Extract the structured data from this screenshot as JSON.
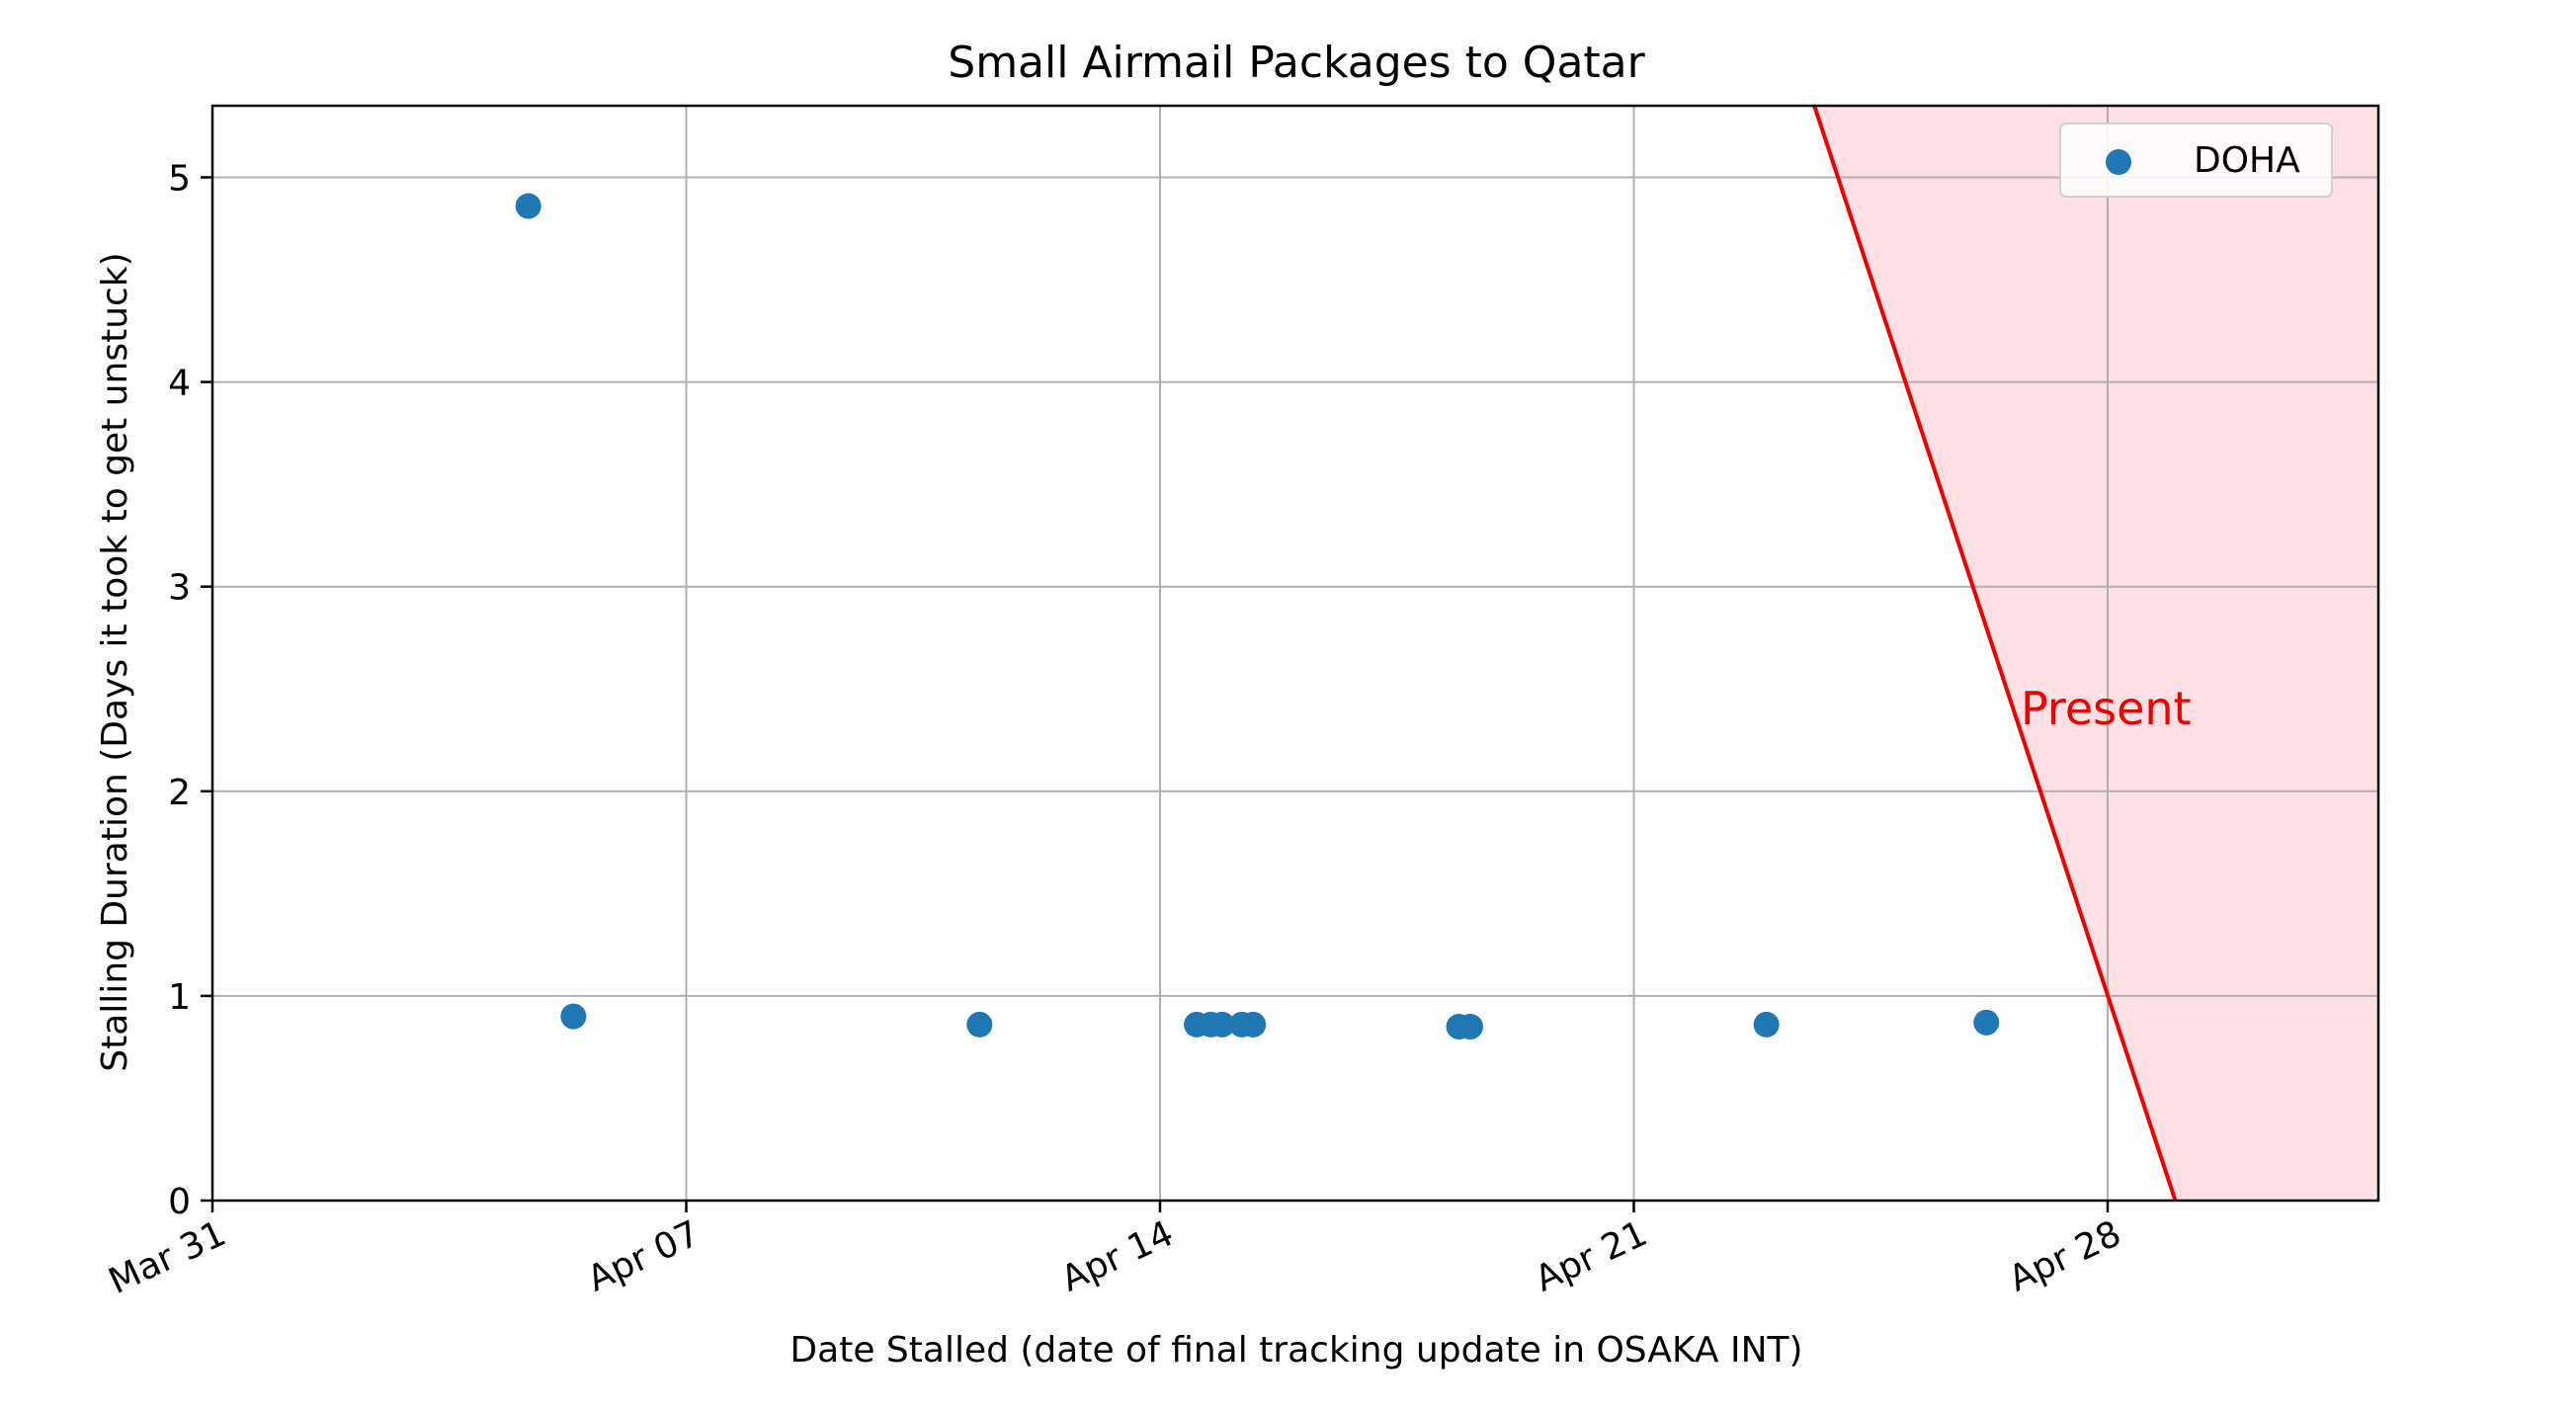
{
  "chart_data": {
    "type": "scatter",
    "title": "Small Airmail Packages to Qatar",
    "xlabel": "Date Stalled (date of final tracking update in OSAKA INT)",
    "ylabel": "Stalling Duration (Days it took to get unstuck)",
    "xlim": [
      "2024-03-31",
      "2024-05-02"
    ],
    "ylim": [
      0,
      5.35
    ],
    "x_ticks": [
      {
        "date": "2024-03-31",
        "label": "Mar 31"
      },
      {
        "date": "2024-04-07",
        "label": "Apr 07"
      },
      {
        "date": "2024-04-14",
        "label": "Apr 14"
      },
      {
        "date": "2024-04-21",
        "label": "Apr 21"
      },
      {
        "date": "2024-04-28",
        "label": "Apr 28"
      }
    ],
    "y_ticks": [
      0,
      1,
      2,
      3,
      4,
      5
    ],
    "grid": true,
    "legend": {
      "position": "top-right"
    },
    "series": [
      {
        "name": "DOHA",
        "color": "#1f77b4",
        "points": [
          {
            "x": "2024-04-04T16:00",
            "y": 4.86
          },
          {
            "x": "2024-04-05T08:00",
            "y": 0.9
          },
          {
            "x": "2024-04-11T08:00",
            "y": 0.86
          },
          {
            "x": "2024-04-14T13:00",
            "y": 0.86
          },
          {
            "x": "2024-04-14T18:00",
            "y": 0.86
          },
          {
            "x": "2024-04-14T22:00",
            "y": 0.86
          },
          {
            "x": "2024-04-15T05:00",
            "y": 0.86
          },
          {
            "x": "2024-04-15T09:00",
            "y": 0.86
          },
          {
            "x": "2024-04-18T10:00",
            "y": 0.85
          },
          {
            "x": "2024-04-18T14:00",
            "y": 0.85
          },
          {
            "x": "2024-04-22T23:00",
            "y": 0.86
          },
          {
            "x": "2024-04-26T05:00",
            "y": 0.87
          }
        ]
      }
    ],
    "present_line": {
      "label": "Present",
      "color": "#ee0000",
      "fill_color": "#fde0e3",
      "top": {
        "x": "2024-04-23T16:00",
        "y": 5.35
      },
      "bottom": {
        "x": "2024-04-29T00:00",
        "y": 0
      }
    }
  }
}
